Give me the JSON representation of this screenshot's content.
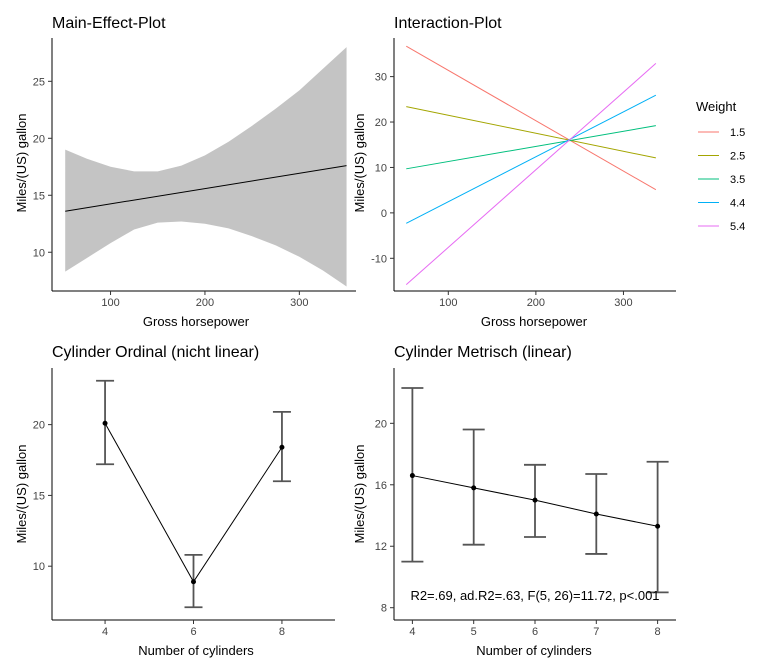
{
  "chart_data": [
    {
      "id": "p1",
      "type": "line",
      "title": "Main-Effect-Plot",
      "xlabel": "Gross horsepower",
      "ylabel": "Miles/(US) gallon",
      "xlim": [
        38,
        360
      ],
      "ylim": [
        6.6,
        28.8
      ],
      "xticks": [
        100,
        200,
        300
      ],
      "yticks": [
        10,
        15,
        20,
        25
      ],
      "grid": false,
      "band_color": "#c4c4c4",
      "line": {
        "x": [
          52,
          350
        ],
        "y": [
          13.6,
          17.6
        ]
      },
      "band": {
        "x": [
          52,
          75,
          100,
          125,
          150,
          175,
          200,
          225,
          250,
          275,
          300,
          325,
          350
        ],
        "upper": [
          19.0,
          18.2,
          17.5,
          17.1,
          17.1,
          17.6,
          18.5,
          19.7,
          21.1,
          22.6,
          24.2,
          26.1,
          28.0
        ],
        "lower": [
          8.3,
          9.5,
          10.8,
          12.0,
          12.6,
          12.7,
          12.5,
          12.1,
          11.4,
          10.6,
          9.6,
          8.4,
          7.0
        ]
      }
    },
    {
      "id": "p2",
      "type": "line",
      "title": "Interaction-Plot",
      "xlabel": "Gross horsepower",
      "ylabel": "Miles/(US) gallon",
      "xlim": [
        38,
        360
      ],
      "ylim": [
        -17.2,
        38.5
      ],
      "xticks": [
        100,
        200,
        300
      ],
      "yticks": [
        -10,
        0,
        10,
        20,
        30
      ],
      "grid": false,
      "legend": {
        "title": "Weight",
        "position": "right"
      },
      "series": [
        {
          "name": "1.5",
          "color": "#f8766d",
          "x": [
            52,
            337
          ],
          "y": [
            36.7,
            5.1
          ]
        },
        {
          "name": "2.5",
          "color": "#a3a500",
          "x": [
            52,
            337
          ],
          "y": [
            23.4,
            12.1
          ]
        },
        {
          "name": "3.5",
          "color": "#00bf7d",
          "x": [
            52,
            337
          ],
          "y": [
            9.7,
            19.2
          ]
        },
        {
          "name": "4.4",
          "color": "#00b0f6",
          "x": [
            52,
            337
          ],
          "y": [
            -2.3,
            25.9
          ]
        },
        {
          "name": "5.4",
          "color": "#e76bf3",
          "x": [
            52,
            337
          ],
          "y": [
            -15.8,
            32.9
          ]
        }
      ]
    },
    {
      "id": "p3",
      "type": "line",
      "title": "Cylinder Ordinal (nicht linear)",
      "xlabel": "Number of cylinders",
      "ylabel": "Miles/(US) gallon",
      "xlim": [
        2.8,
        9.2
      ],
      "ylim": [
        6.2,
        24.0
      ],
      "xticks": [
        4,
        6,
        8
      ],
      "yticks": [
        10,
        15,
        20
      ],
      "grid": false,
      "points": [
        {
          "x": 4,
          "y": 20.1,
          "lo": 17.2,
          "hi": 23.1
        },
        {
          "x": 6,
          "y": 8.9,
          "lo": 7.1,
          "hi": 10.8
        },
        {
          "x": 8,
          "y": 18.4,
          "lo": 16.0,
          "hi": 20.9
        }
      ]
    },
    {
      "id": "p4",
      "type": "line",
      "title": "Cylinder Metrisch (linear)",
      "xlabel": "Number of cylinders",
      "ylabel": "Miles/(US) gallon",
      "xlim": [
        3.7,
        8.3
      ],
      "ylim": [
        7.2,
        23.6
      ],
      "xticks": [
        4,
        5,
        6,
        7,
        8
      ],
      "yticks": [
        8,
        12,
        16,
        20
      ],
      "grid": false,
      "annotation": "R2=.69, ad.R2=.63, F(5, 26)=11.72, p<.001",
      "points": [
        {
          "x": 4,
          "y": 16.6,
          "lo": 11.0,
          "hi": 22.3
        },
        {
          "x": 5,
          "y": 15.8,
          "lo": 12.1,
          "hi": 19.6
        },
        {
          "x": 6,
          "y": 15.0,
          "lo": 12.6,
          "hi": 17.3
        },
        {
          "x": 7,
          "y": 14.1,
          "lo": 11.5,
          "hi": 16.7
        },
        {
          "x": 8,
          "y": 13.3,
          "lo": 9.0,
          "hi": 17.5
        }
      ]
    }
  ]
}
